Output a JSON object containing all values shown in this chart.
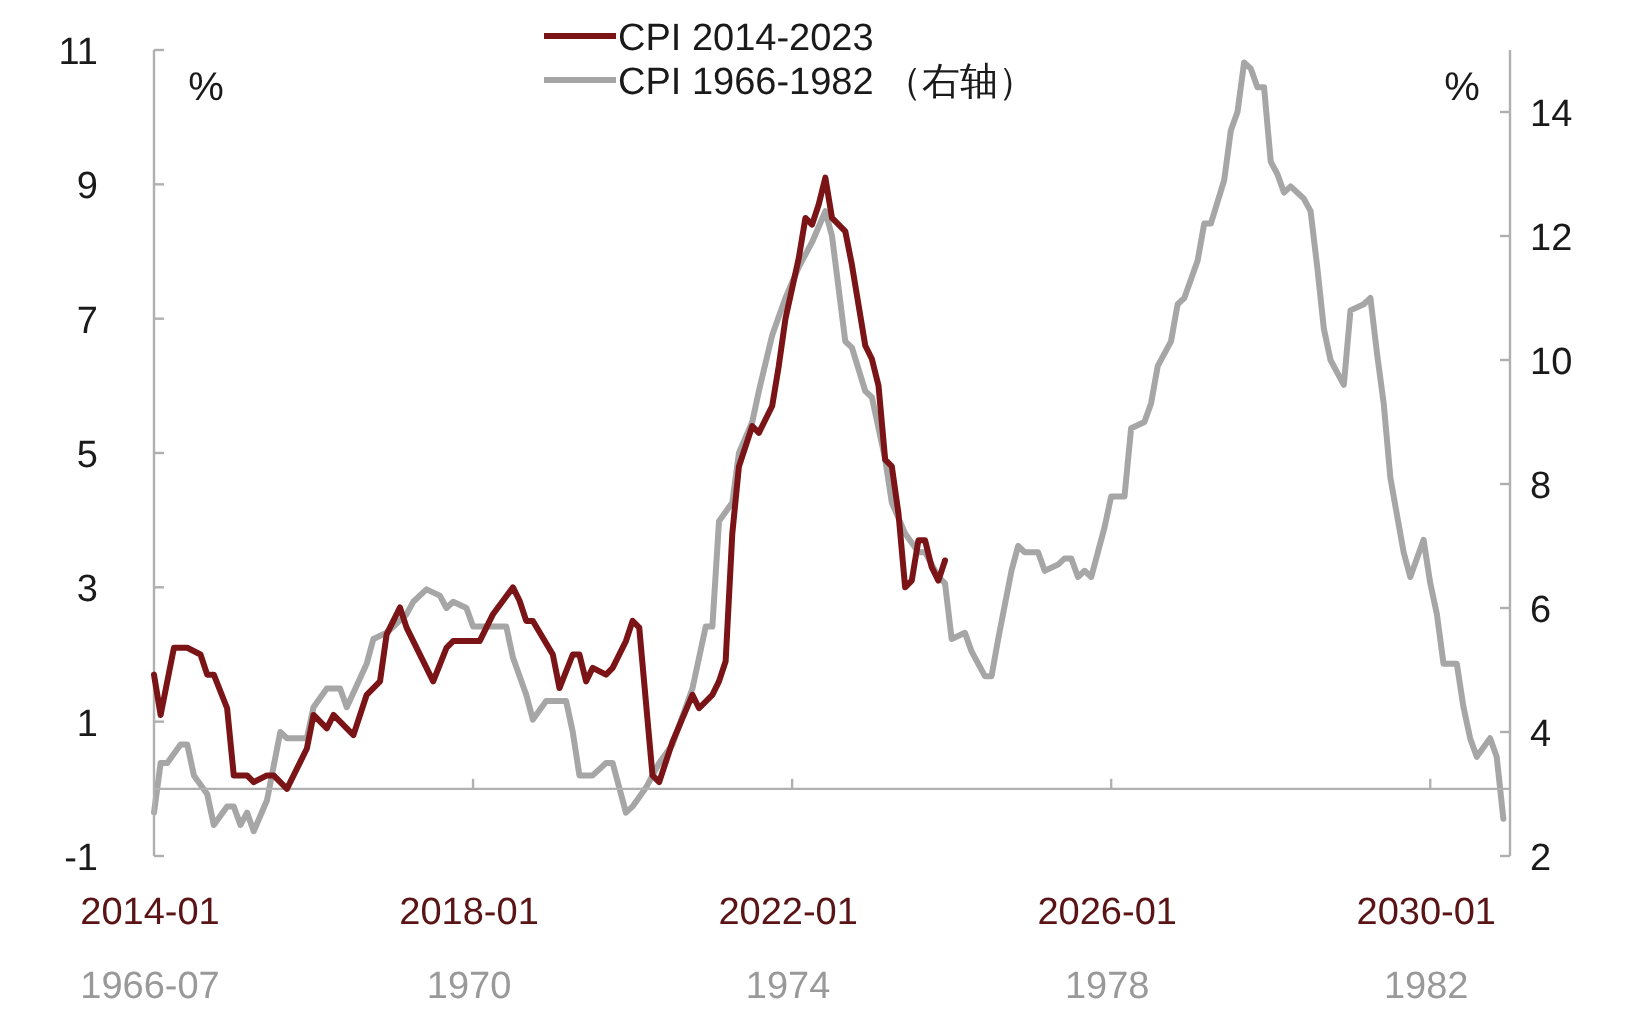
{
  "chart_data": [
    {
      "type": "line",
      "xlim": [
        "2014-01",
        "2031-01"
      ],
      "xticks": [
        {
          "value": "2014-01",
          "label": "2014-01"
        },
        {
          "value": "2018-01",
          "label": "2018-01"
        },
        {
          "value": "2022-01",
          "label": "2022-01"
        },
        {
          "value": "2026-01",
          "label": "2026-01"
        },
        {
          "value": "2030-01",
          "label": "2030-01"
        }
      ],
      "ylim": [
        -1,
        11
      ],
      "yticks": [
        -1,
        1,
        3,
        5,
        7,
        9,
        11
      ],
      "ylabel": "%",
      "legend": "top",
      "grid": false,
      "marker": "none",
      "line_style": "solid",
      "series": [
        {
          "name": "CPI 2014-2023",
          "color": "#7b1416",
          "x": [
            "2014-01",
            "2014-02",
            "2014-04",
            "2014-06",
            "2014-08",
            "2014-09",
            "2014-10",
            "2014-12",
            "2015-01",
            "2015-03",
            "2015-04",
            "2015-06",
            "2015-07",
            "2015-09",
            "2015-12",
            "2016-01",
            "2016-03",
            "2016-04",
            "2016-07",
            "2016-09",
            "2016-11",
            "2016-12",
            "2017-02",
            "2017-03",
            "2017-07",
            "2017-09",
            "2017-10",
            "2017-12",
            "2018-02",
            "2018-04",
            "2018-07",
            "2018-08",
            "2018-09",
            "2018-10",
            "2019-01",
            "2019-02",
            "2019-04",
            "2019-05",
            "2019-06",
            "2019-07",
            "2019-09",
            "2019-10",
            "2019-12",
            "2020-01",
            "2020-02",
            "2020-03",
            "2020-04",
            "2020-05",
            "2020-07",
            "2020-10",
            "2020-11",
            "2021-01",
            "2021-02",
            "2021-03",
            "2021-04",
            "2021-05",
            "2021-07",
            "2021-08",
            "2021-10",
            "2021-11",
            "2021-12",
            "2022-02",
            "2022-03",
            "2022-04",
            "2022-05",
            "2022-06",
            "2022-07",
            "2022-09",
            "2022-10",
            "2022-12",
            "2023-01",
            "2023-02",
            "2023-03",
            "2023-04",
            "2023-05",
            "2023-06",
            "2023-07",
            "2023-08",
            "2023-09",
            "2023-10",
            "2023-11",
            "2023-12"
          ],
          "values": [
            1.7,
            1.1,
            2.1,
            2.1,
            2.0,
            1.7,
            1.7,
            1.2,
            0.2,
            0.2,
            0.1,
            0.2,
            0.2,
            0.0,
            0.6,
            1.1,
            0.9,
            1.1,
            0.8,
            1.4,
            1.6,
            2.3,
            2.7,
            2.4,
            1.6,
            2.1,
            2.2,
            2.2,
            2.2,
            2.6,
            3.0,
            2.8,
            2.5,
            2.5,
            2.0,
            1.5,
            2.0,
            2.0,
            1.6,
            1.8,
            1.7,
            1.8,
            2.2,
            2.5,
            2.4,
            1.3,
            0.2,
            0.1,
            0.7,
            1.4,
            1.2,
            1.4,
            1.6,
            1.9,
            3.8,
            4.8,
            5.4,
            5.3,
            5.7,
            6.3,
            7.0,
            7.9,
            8.5,
            8.4,
            8.7,
            9.1,
            8.5,
            8.3,
            7.8,
            6.6,
            6.4,
            6.0,
            4.9,
            4.8,
            4.1,
            3.0,
            3.1,
            3.7,
            3.7,
            3.3,
            3.1,
            3.4
          ]
        }
      ]
    },
    {
      "type": "line",
      "xlim": [
        "1966-07",
        "1983-07"
      ],
      "xticks": [
        {
          "value": "1966-07",
          "label": "1966-07"
        },
        {
          "value": "1970-07",
          "label": "1970"
        },
        {
          "value": "1974-07",
          "label": "1974"
        },
        {
          "value": "1978-07",
          "label": "1978"
        },
        {
          "value": "1982-07",
          "label": "1982"
        }
      ],
      "ylim": [
        2,
        15
      ],
      "yticks": [
        2,
        4,
        6,
        8,
        10,
        12,
        14
      ],
      "ylabel": "%",
      "legend": "top",
      "grid": false,
      "marker": "none",
      "line_style": "solid",
      "series": [
        {
          "name": "CPI 1966-1982 （右轴）",
          "color": "#a6a6a6",
          "x": [
            "1966-07",
            "1966-08",
            "1966-09",
            "1966-11",
            "1966-12",
            "1967-01",
            "1967-03",
            "1967-04",
            "1967-06",
            "1967-07",
            "1967-08",
            "1967-09",
            "1967-10",
            "1967-12",
            "1968-02",
            "1968-03",
            "1968-06",
            "1968-07",
            "1968-09",
            "1968-11",
            "1968-12",
            "1969-03",
            "1969-04",
            "1969-06",
            "1969-09",
            "1969-10",
            "1969-12",
            "1970-02",
            "1970-03",
            "1970-04",
            "1970-06",
            "1970-07",
            "1970-09",
            "1970-12",
            "1971-01",
            "1971-03",
            "1971-04",
            "1971-06",
            "1971-07",
            "1971-09",
            "1971-10",
            "1971-11",
            "1972-01",
            "1972-03",
            "1972-04",
            "1972-06",
            "1972-07",
            "1972-09",
            "1972-11",
            "1973-01",
            "1973-04",
            "1973-06",
            "1973-07",
            "1973-08",
            "1973-10",
            "1973-11",
            "1974-01",
            "1974-02",
            "1974-04",
            "1974-05",
            "1974-06",
            "1974-08",
            "1974-10",
            "1974-12",
            "1975-01",
            "1975-03",
            "1975-04",
            "1975-06",
            "1975-07",
            "1975-09",
            "1975-10",
            "1975-12",
            "1976-02",
            "1976-03",
            "1976-05",
            "1976-06",
            "1976-07",
            "1976-09",
            "1976-10",
            "1976-12",
            "1977-01",
            "1977-02",
            "1977-04",
            "1977-05",
            "1977-06",
            "1977-08",
            "1977-09",
            "1977-11",
            "1977-12",
            "1978-01",
            "1978-02",
            "1978-03",
            "1978-04",
            "1978-06",
            "1978-07",
            "1978-09",
            "1978-10",
            "1978-12",
            "1979-01",
            "1979-02",
            "1979-04",
            "1979-05",
            "1979-06",
            "1979-08",
            "1979-09",
            "1979-10",
            "1979-12",
            "1980-01",
            "1980-02",
            "1980-03",
            "1980-04",
            "1980-05",
            "1980-06",
            "1980-07",
            "1980-08",
            "1980-09",
            "1980-10",
            "1980-12",
            "1981-01",
            "1981-02",
            "1981-03",
            "1981-04",
            "1981-06",
            "1981-07",
            "1981-09",
            "1981-10",
            "1981-11",
            "1981-12",
            "1982-01",
            "1982-03",
            "1982-04",
            "1982-06",
            "1982-07",
            "1982-08",
            "1982-09",
            "1982-11",
            "1982-12",
            "1983-01",
            "1983-02",
            "1983-04",
            "1983-05",
            "1983-06"
          ],
          "values": [
            2.7,
            3.5,
            3.5,
            3.8,
            3.8,
            3.3,
            3.0,
            2.5,
            2.8,
            2.8,
            2.5,
            2.7,
            2.4,
            2.9,
            4.0,
            3.9,
            3.9,
            4.4,
            4.7,
            4.7,
            4.4,
            5.1,
            5.5,
            5.6,
            5.9,
            6.1,
            6.3,
            6.2,
            6.0,
            6.1,
            6.0,
            5.7,
            5.7,
            5.7,
            5.2,
            4.6,
            4.2,
            4.5,
            4.5,
            4.5,
            4.0,
            3.3,
            3.3,
            3.5,
            3.5,
            2.7,
            2.8,
            3.1,
            3.5,
            3.8,
            4.7,
            5.7,
            5.7,
            7.4,
            7.7,
            8.5,
            9.0,
            9.5,
            10.4,
            10.7,
            11.0,
            11.5,
            11.9,
            12.4,
            12.0,
            10.3,
            10.2,
            9.5,
            9.4,
            8.4,
            7.7,
            7.2,
            6.9,
            6.9,
            6.5,
            6.4,
            5.5,
            5.6,
            5.3,
            4.9,
            4.9,
            5.5,
            6.6,
            7.0,
            6.9,
            6.9,
            6.6,
            6.7,
            6.8,
            6.8,
            6.5,
            6.6,
            6.5,
            7.3,
            7.8,
            7.8,
            8.9,
            9.0,
            9.3,
            9.9,
            10.3,
            10.9,
            11.0,
            11.6,
            12.2,
            12.2,
            12.9,
            13.7,
            14.0,
            14.8,
            14.7,
            14.4,
            14.4,
            13.2,
            13.0,
            12.7,
            12.8,
            12.6,
            12.4,
            11.5,
            10.5,
            10.0,
            9.6,
            10.8,
            10.9,
            11.0,
            10.1,
            9.3,
            8.1,
            6.9,
            6.5,
            7.1,
            6.4,
            5.9,
            5.1,
            5.1,
            4.4,
            3.9,
            3.6,
            3.9,
            3.6,
            2.6
          ]
        }
      ]
    }
  ]
}
